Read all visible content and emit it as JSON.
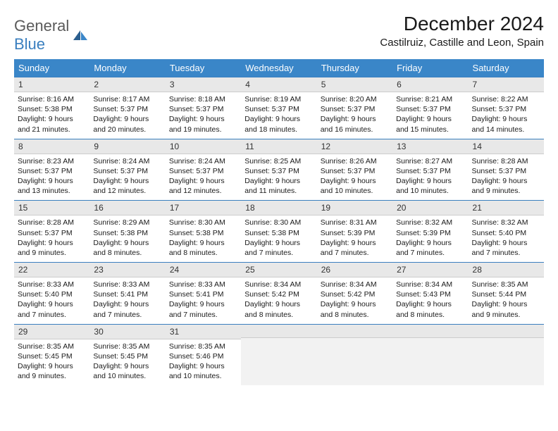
{
  "logo": {
    "word1": "General",
    "word2": "Blue"
  },
  "title": "December 2024",
  "location": "Castilruiz, Castille and Leon, Spain",
  "day_headers": [
    "Sunday",
    "Monday",
    "Tuesday",
    "Wednesday",
    "Thursday",
    "Friday",
    "Saturday"
  ],
  "colors": {
    "header_bg": "#3a86c8",
    "header_fg": "#ffffff",
    "daynum_bg": "#e8e8e8",
    "daynum_border_top": "#3a7fbf",
    "empty_bg": "#f2f2f2"
  },
  "weeks": [
    [
      {
        "n": "1",
        "sr": "8:16 AM",
        "ss": "5:38 PM",
        "dl": "9 hours and 21 minutes."
      },
      {
        "n": "2",
        "sr": "8:17 AM",
        "ss": "5:37 PM",
        "dl": "9 hours and 20 minutes."
      },
      {
        "n": "3",
        "sr": "8:18 AM",
        "ss": "5:37 PM",
        "dl": "9 hours and 19 minutes."
      },
      {
        "n": "4",
        "sr": "8:19 AM",
        "ss": "5:37 PM",
        "dl": "9 hours and 18 minutes."
      },
      {
        "n": "5",
        "sr": "8:20 AM",
        "ss": "5:37 PM",
        "dl": "9 hours and 16 minutes."
      },
      {
        "n": "6",
        "sr": "8:21 AM",
        "ss": "5:37 PM",
        "dl": "9 hours and 15 minutes."
      },
      {
        "n": "7",
        "sr": "8:22 AM",
        "ss": "5:37 PM",
        "dl": "9 hours and 14 minutes."
      }
    ],
    [
      {
        "n": "8",
        "sr": "8:23 AM",
        "ss": "5:37 PM",
        "dl": "9 hours and 13 minutes."
      },
      {
        "n": "9",
        "sr": "8:24 AM",
        "ss": "5:37 PM",
        "dl": "9 hours and 12 minutes."
      },
      {
        "n": "10",
        "sr": "8:24 AM",
        "ss": "5:37 PM",
        "dl": "9 hours and 12 minutes."
      },
      {
        "n": "11",
        "sr": "8:25 AM",
        "ss": "5:37 PM",
        "dl": "9 hours and 11 minutes."
      },
      {
        "n": "12",
        "sr": "8:26 AM",
        "ss": "5:37 PM",
        "dl": "9 hours and 10 minutes."
      },
      {
        "n": "13",
        "sr": "8:27 AM",
        "ss": "5:37 PM",
        "dl": "9 hours and 10 minutes."
      },
      {
        "n": "14",
        "sr": "8:28 AM",
        "ss": "5:37 PM",
        "dl": "9 hours and 9 minutes."
      }
    ],
    [
      {
        "n": "15",
        "sr": "8:28 AM",
        "ss": "5:37 PM",
        "dl": "9 hours and 9 minutes."
      },
      {
        "n": "16",
        "sr": "8:29 AM",
        "ss": "5:38 PM",
        "dl": "9 hours and 8 minutes."
      },
      {
        "n": "17",
        "sr": "8:30 AM",
        "ss": "5:38 PM",
        "dl": "9 hours and 8 minutes."
      },
      {
        "n": "18",
        "sr": "8:30 AM",
        "ss": "5:38 PM",
        "dl": "9 hours and 7 minutes."
      },
      {
        "n": "19",
        "sr": "8:31 AM",
        "ss": "5:39 PM",
        "dl": "9 hours and 7 minutes."
      },
      {
        "n": "20",
        "sr": "8:32 AM",
        "ss": "5:39 PM",
        "dl": "9 hours and 7 minutes."
      },
      {
        "n": "21",
        "sr": "8:32 AM",
        "ss": "5:40 PM",
        "dl": "9 hours and 7 minutes."
      }
    ],
    [
      {
        "n": "22",
        "sr": "8:33 AM",
        "ss": "5:40 PM",
        "dl": "9 hours and 7 minutes."
      },
      {
        "n": "23",
        "sr": "8:33 AM",
        "ss": "5:41 PM",
        "dl": "9 hours and 7 minutes."
      },
      {
        "n": "24",
        "sr": "8:33 AM",
        "ss": "5:41 PM",
        "dl": "9 hours and 7 minutes."
      },
      {
        "n": "25",
        "sr": "8:34 AM",
        "ss": "5:42 PM",
        "dl": "9 hours and 8 minutes."
      },
      {
        "n": "26",
        "sr": "8:34 AM",
        "ss": "5:42 PM",
        "dl": "9 hours and 8 minutes."
      },
      {
        "n": "27",
        "sr": "8:34 AM",
        "ss": "5:43 PM",
        "dl": "9 hours and 8 minutes."
      },
      {
        "n": "28",
        "sr": "8:35 AM",
        "ss": "5:44 PM",
        "dl": "9 hours and 9 minutes."
      }
    ],
    [
      {
        "n": "29",
        "sr": "8:35 AM",
        "ss": "5:45 PM",
        "dl": "9 hours and 9 minutes."
      },
      {
        "n": "30",
        "sr": "8:35 AM",
        "ss": "5:45 PM",
        "dl": "9 hours and 10 minutes."
      },
      {
        "n": "31",
        "sr": "8:35 AM",
        "ss": "5:46 PM",
        "dl": "9 hours and 10 minutes."
      },
      null,
      null,
      null,
      null
    ]
  ],
  "labels": {
    "sunrise": "Sunrise:",
    "sunset": "Sunset:",
    "daylight": "Daylight:"
  }
}
